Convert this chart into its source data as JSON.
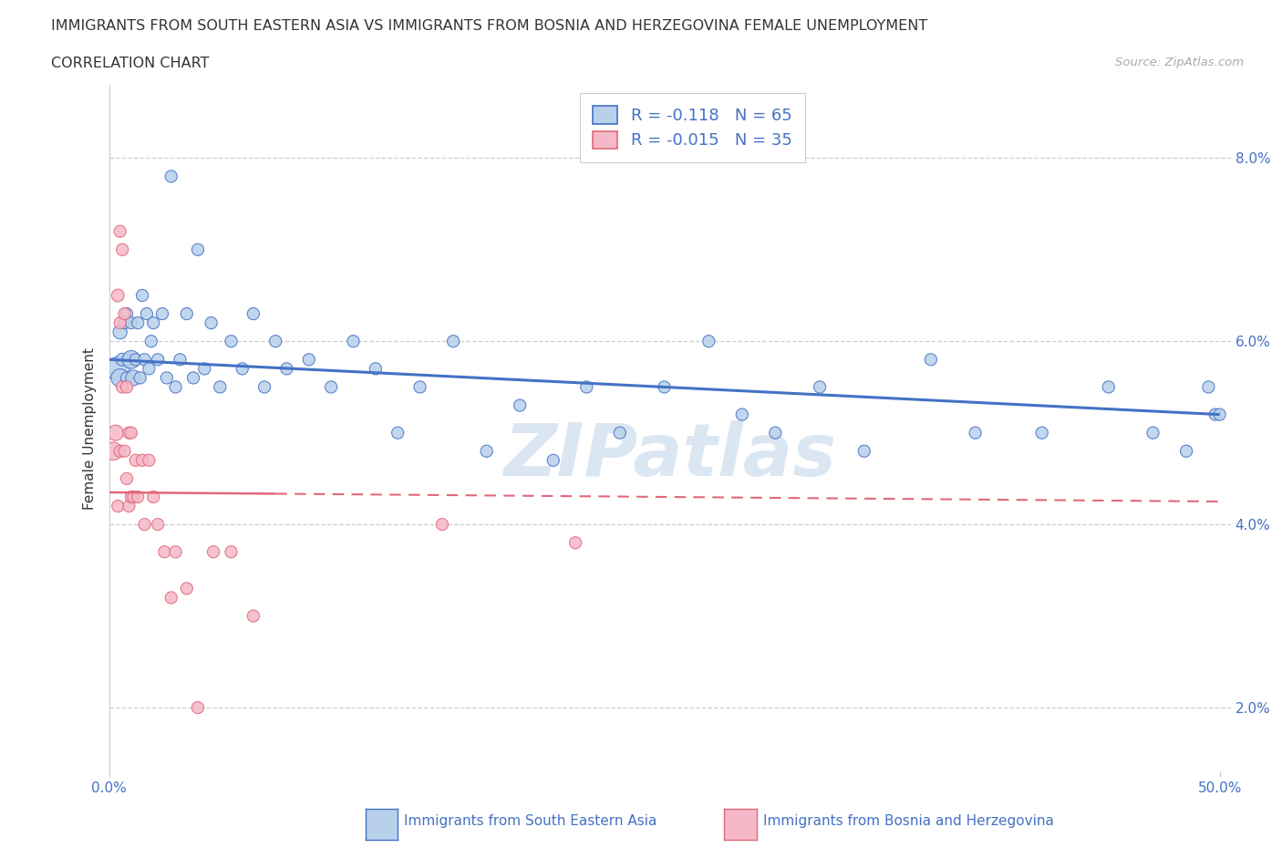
{
  "title_line1": "IMMIGRANTS FROM SOUTH EASTERN ASIA VS IMMIGRANTS FROM BOSNIA AND HERZEGOVINA FEMALE UNEMPLOYMENT",
  "title_line2": "CORRELATION CHART",
  "source": "Source: ZipAtlas.com",
  "ylabel": "Female Unemployment",
  "series1_label": "Immigrants from South Eastern Asia",
  "series2_label": "Immigrants from Bosnia and Herzegovina",
  "r1": -0.118,
  "n1": 65,
  "r2": -0.015,
  "n2": 35,
  "color1": "#b8d0eb",
  "color2": "#f5b8c8",
  "line_color1": "#4472c4",
  "line_color2": "#e06878",
  "text_color": "#4472c4",
  "watermark": "ZIPatlas",
  "watermark_color": "#ccdcee",
  "bg_color": "#ffffff",
  "grid_color": "#cccccc",
  "title_color": "#333333",
  "axis_label_color": "#4472c4",
  "xlim": [
    0.0,
    0.505
  ],
  "ylim": [
    0.013,
    0.088
  ],
  "yticks": [
    0.02,
    0.04,
    0.06,
    0.08
  ],
  "ytick_labels": [
    "2.0%",
    "4.0%",
    "6.0%",
    "8.0%"
  ],
  "trend1_x0": 0.0,
  "trend1_y0": 0.058,
  "trend1_x1": 0.5,
  "trend1_y1": 0.052,
  "trend2_x0": 0.0,
  "trend2_y0": 0.0435,
  "trend2_x1": 0.5,
  "trend2_y1": 0.0425,
  "trend2_solid_end": 0.075,
  "series1_x": [
    0.004,
    0.005,
    0.005,
    0.006,
    0.007,
    0.008,
    0.008,
    0.009,
    0.01,
    0.01,
    0.011,
    0.012,
    0.013,
    0.014,
    0.015,
    0.016,
    0.017,
    0.018,
    0.019,
    0.02,
    0.022,
    0.024,
    0.026,
    0.028,
    0.03,
    0.032,
    0.035,
    0.038,
    0.04,
    0.043,
    0.046,
    0.05,
    0.055,
    0.06,
    0.065,
    0.07,
    0.075,
    0.08,
    0.09,
    0.1,
    0.11,
    0.12,
    0.13,
    0.14,
    0.155,
    0.17,
    0.185,
    0.2,
    0.215,
    0.23,
    0.25,
    0.27,
    0.285,
    0.3,
    0.32,
    0.34,
    0.37,
    0.39,
    0.42,
    0.45,
    0.47,
    0.485,
    0.495,
    0.498,
    0.5
  ],
  "series1_y": [
    0.057,
    0.056,
    0.061,
    0.058,
    0.062,
    0.056,
    0.063,
    0.058,
    0.058,
    0.062,
    0.056,
    0.058,
    0.062,
    0.056,
    0.065,
    0.058,
    0.063,
    0.057,
    0.06,
    0.062,
    0.058,
    0.063,
    0.056,
    0.078,
    0.055,
    0.058,
    0.063,
    0.056,
    0.07,
    0.057,
    0.062,
    0.055,
    0.06,
    0.057,
    0.063,
    0.055,
    0.06,
    0.057,
    0.058,
    0.055,
    0.06,
    0.057,
    0.05,
    0.055,
    0.06,
    0.048,
    0.053,
    0.047,
    0.055,
    0.05,
    0.055,
    0.06,
    0.052,
    0.05,
    0.055,
    0.048,
    0.058,
    0.05,
    0.05,
    0.055,
    0.05,
    0.048,
    0.055,
    0.052,
    0.052
  ],
  "series1_size": [
    350,
    200,
    120,
    100,
    90,
    90,
    90,
    90,
    200,
    90,
    150,
    90,
    90,
    90,
    90,
    90,
    90,
    90,
    90,
    90,
    90,
    90,
    90,
    90,
    90,
    90,
    90,
    90,
    90,
    90,
    90,
    90,
    90,
    90,
    90,
    90,
    90,
    90,
    90,
    90,
    90,
    90,
    90,
    90,
    90,
    90,
    90,
    90,
    90,
    90,
    90,
    90,
    90,
    90,
    90,
    90,
    90,
    90,
    90,
    90,
    90,
    90,
    90,
    90,
    90
  ],
  "series2_x": [
    0.002,
    0.003,
    0.004,
    0.004,
    0.005,
    0.005,
    0.005,
    0.006,
    0.006,
    0.007,
    0.007,
    0.008,
    0.008,
    0.009,
    0.009,
    0.01,
    0.01,
    0.011,
    0.012,
    0.013,
    0.015,
    0.016,
    0.018,
    0.02,
    0.022,
    0.025,
    0.028,
    0.03,
    0.035,
    0.04,
    0.047,
    0.055,
    0.065,
    0.15,
    0.21
  ],
  "series2_y": [
    0.048,
    0.05,
    0.065,
    0.042,
    0.072,
    0.062,
    0.048,
    0.07,
    0.055,
    0.063,
    0.048,
    0.055,
    0.045,
    0.05,
    0.042,
    0.05,
    0.043,
    0.043,
    0.047,
    0.043,
    0.047,
    0.04,
    0.047,
    0.043,
    0.04,
    0.037,
    0.032,
    0.037,
    0.033,
    0.02,
    0.037,
    0.037,
    0.03,
    0.04,
    0.038
  ],
  "series2_size": [
    200,
    150,
    100,
    90,
    90,
    90,
    90,
    90,
    90,
    90,
    90,
    90,
    90,
    90,
    90,
    90,
    90,
    90,
    90,
    90,
    90,
    90,
    90,
    90,
    90,
    90,
    90,
    90,
    90,
    90,
    90,
    90,
    90,
    90,
    90
  ]
}
